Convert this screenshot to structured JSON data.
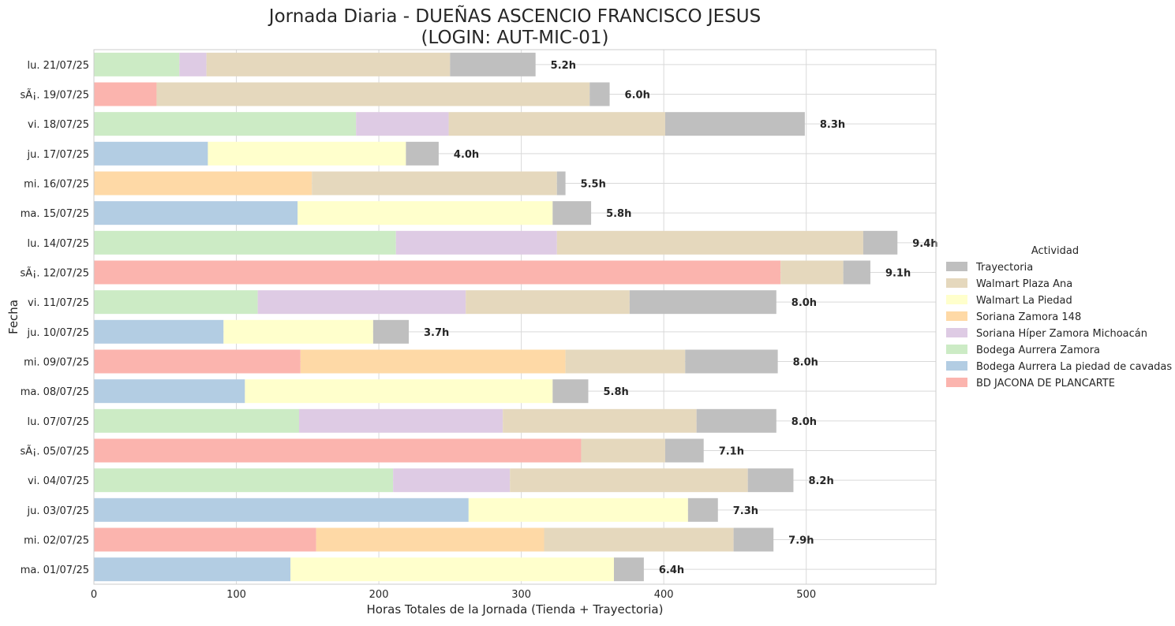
{
  "chart_data": {
    "type": "bar",
    "orientation": "horizontal",
    "stacked": true,
    "title": "Jornada Diaria - DUEÑAS ASCENCIO FRANCISCO JESUS\n(LOGIN: AUT-MIC-01)",
    "xlabel": "Horas Totales de la Jornada (Tienda + Trayectoria)",
    "ylabel": "Fecha",
    "xlim": [
      0,
      591
    ],
    "xticks": [
      0,
      100,
      200,
      300,
      400,
      500
    ],
    "grid": true,
    "legend": {
      "title": "Actividad",
      "placement": "right"
    },
    "categories": [
      "lu. 21/07/25",
      "sÃ¡. 19/07/25",
      "vi. 18/07/25",
      "ju. 17/07/25",
      "mi. 16/07/25",
      "ma. 15/07/25",
      "lu. 14/07/25",
      "sÃ¡. 12/07/25",
      "vi. 11/07/25",
      "ju. 10/07/25",
      "mi. 09/07/25",
      "ma. 08/07/25",
      "lu. 07/07/25",
      "sÃ¡. 05/07/25",
      "vi. 04/07/25",
      "ju. 03/07/25",
      "mi. 02/07/25",
      "ma. 01/07/25"
    ],
    "series": [
      {
        "name": "BD JACONA DE PLANCARTE",
        "color": "#fbb4ae",
        "values": [
          0,
          44,
          0,
          0,
          0,
          0,
          0,
          482,
          0,
          0,
          145,
          0,
          0,
          342,
          0,
          0,
          156,
          0
        ]
      },
      {
        "name": "Bodega Aurrera La piedad de cavadas",
        "color": "#b3cde3",
        "values": [
          0,
          0,
          0,
          80,
          0,
          143,
          0,
          0,
          0,
          91,
          0,
          106,
          0,
          0,
          0,
          263,
          0,
          138
        ]
      },
      {
        "name": "Bodega Aurrera Zamora",
        "color": "#ccebc5",
        "values": [
          60,
          0,
          184,
          0,
          0,
          0,
          212,
          0,
          115,
          0,
          0,
          0,
          144,
          0,
          210,
          0,
          0,
          0
        ]
      },
      {
        "name": "Soriana Híper Zamora Michoacán",
        "color": "#decbe4",
        "values": [
          19,
          0,
          65,
          0,
          0,
          0,
          113,
          0,
          146,
          0,
          0,
          0,
          143,
          0,
          82,
          0,
          0,
          0
        ]
      },
      {
        "name": "Soriana Zamora 148",
        "color": "#fed9a6",
        "values": [
          0,
          0,
          0,
          0,
          153,
          0,
          0,
          0,
          0,
          0,
          186,
          0,
          0,
          0,
          0,
          0,
          160,
          0
        ]
      },
      {
        "name": "Walmart La Piedad",
        "color": "#ffffcc",
        "values": [
          0,
          0,
          0,
          139,
          0,
          179,
          0,
          0,
          0,
          105,
          0,
          216,
          0,
          0,
          0,
          154,
          0,
          227
        ]
      },
      {
        "name": "Walmart Plaza Ana",
        "color": "#e5d8bd",
        "values": [
          171,
          304,
          152,
          0,
          172,
          0,
          215,
          44,
          115,
          0,
          84,
          0,
          136,
          59,
          167,
          0,
          133,
          0
        ]
      },
      {
        "name": "Trayectoria",
        "color": "#bfbfbf",
        "values": [
          60,
          14,
          98,
          23,
          6,
          27,
          24,
          19,
          103,
          25,
          65,
          25,
          56,
          27,
          32,
          21,
          28,
          21
        ]
      }
    ],
    "bar_labels": [
      "5.2h",
      "6.0h",
      "8.3h",
      "4.0h",
      "5.5h",
      "5.8h",
      "9.4h",
      "9.1h",
      "8.0h",
      "3.7h",
      "8.0h",
      "5.8h",
      "8.0h",
      "7.1h",
      "8.2h",
      "7.3h",
      "7.9h",
      "6.4h"
    ],
    "legend_order": [
      "Trayectoria",
      "Walmart Plaza Ana",
      "Walmart La Piedad",
      "Soriana Zamora 148",
      "Soriana Híper Zamora Michoacán",
      "Bodega Aurrera Zamora",
      "Bodega Aurrera La piedad de cavadas",
      "BD JACONA DE PLANCARTE"
    ]
  }
}
